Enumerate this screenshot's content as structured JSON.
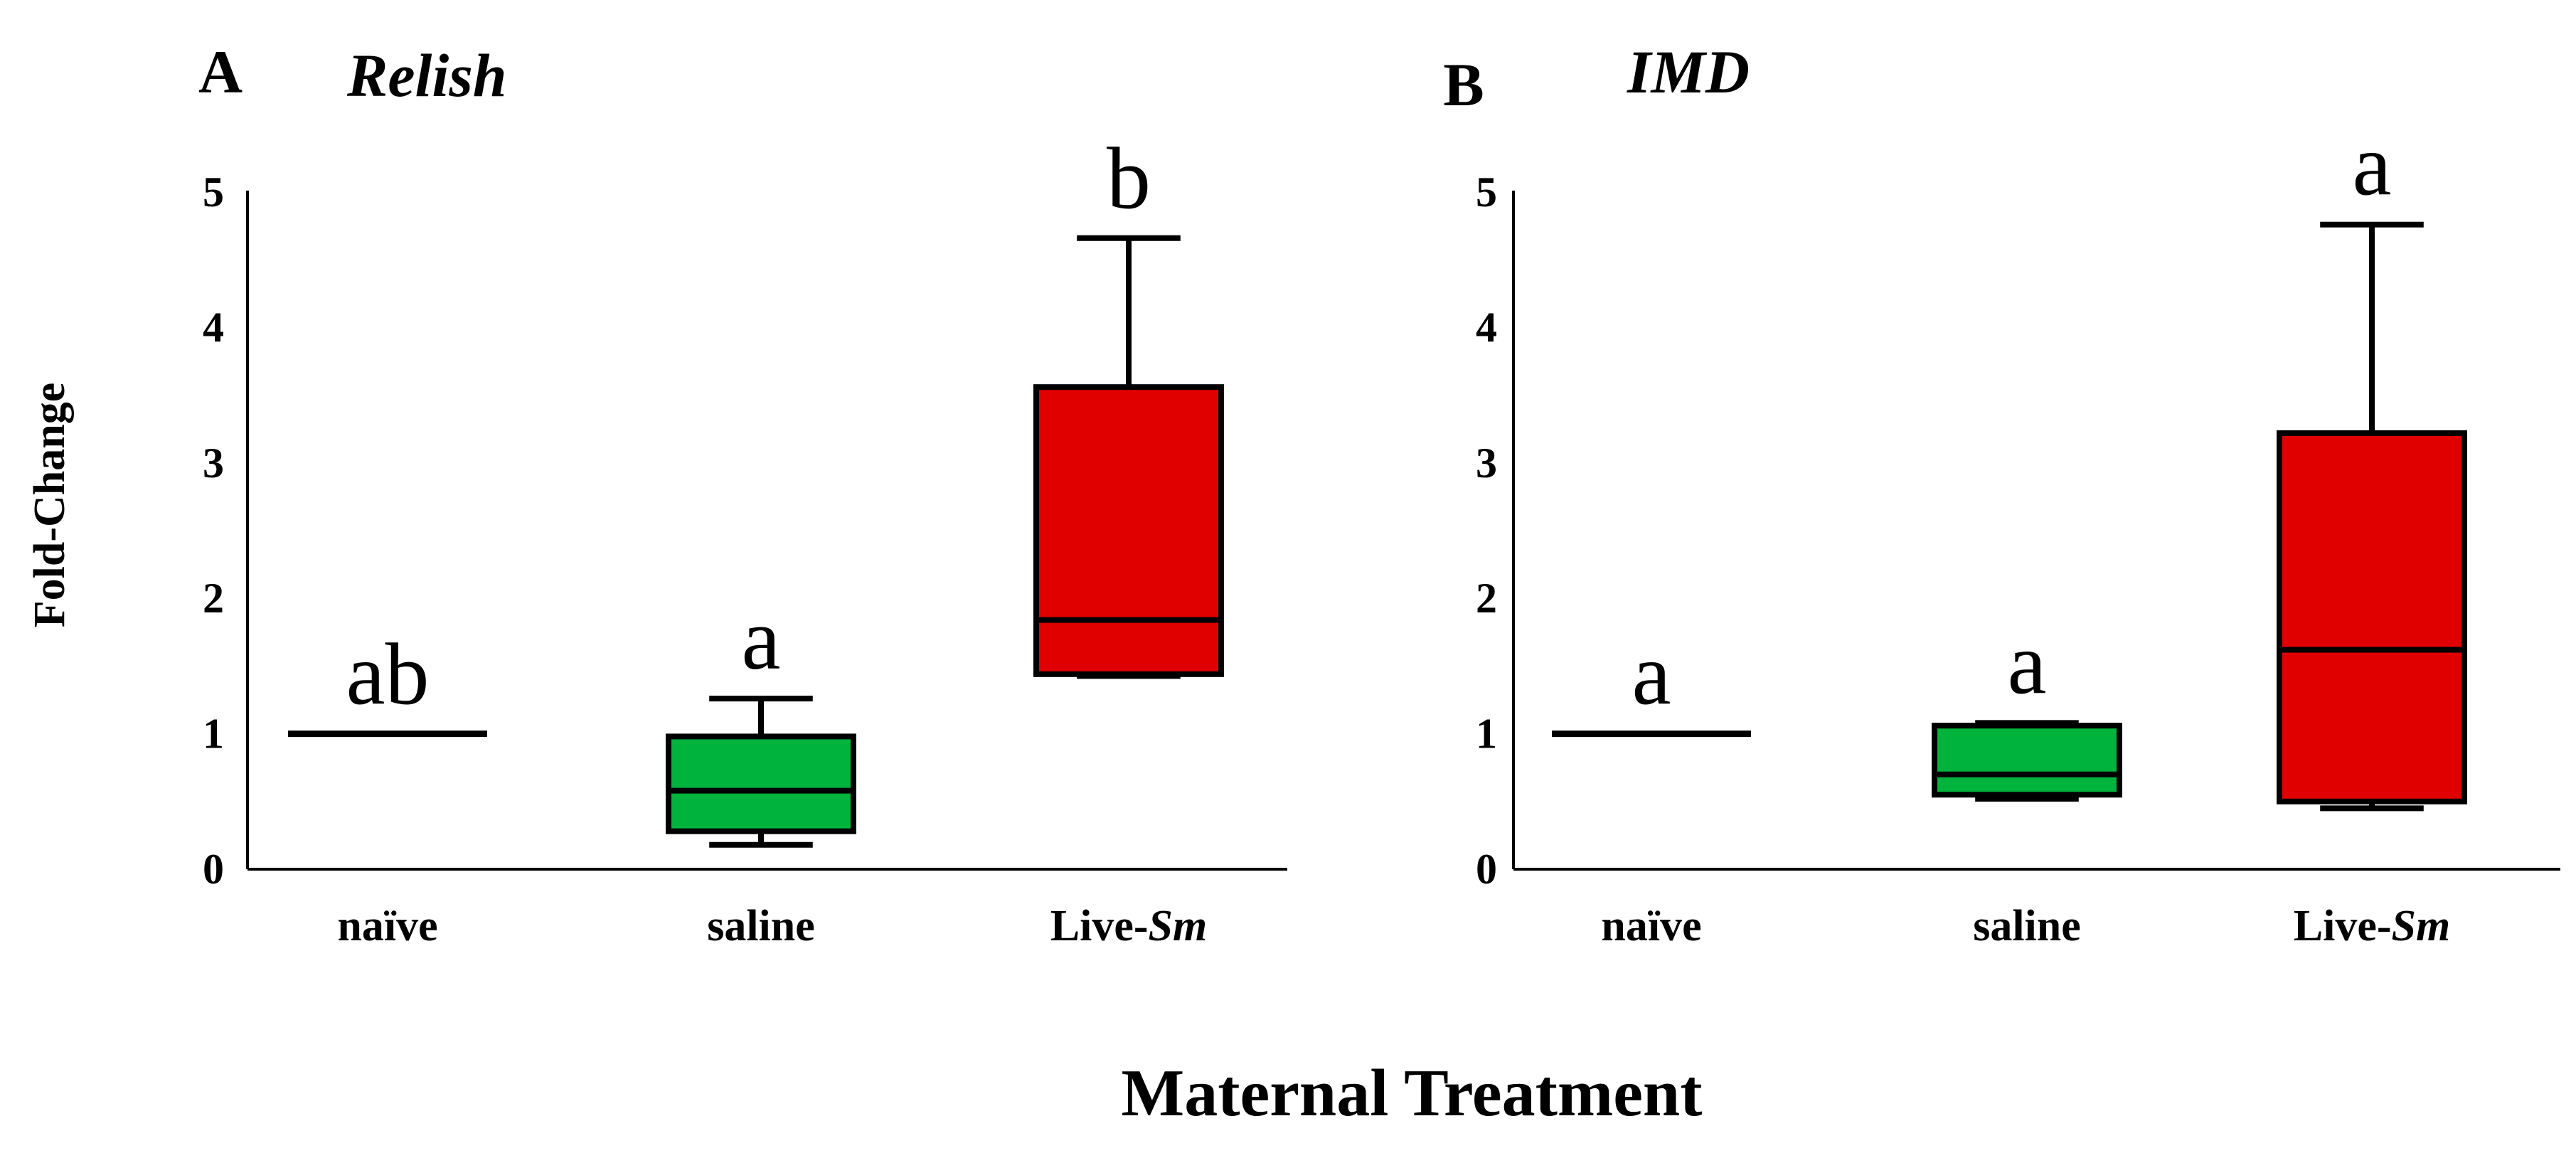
{
  "chart_data": [
    {
      "type": "box",
      "panel": "A",
      "title": "Relish",
      "ylim": [
        0,
        5
      ],
      "yticks": [
        "0",
        "1",
        "2",
        "3",
        "4",
        "5"
      ],
      "categories": [
        "naïve",
        "saline",
        "Live-Sm"
      ],
      "groups": [
        {
          "label": "naïve",
          "label_main": "naïve",
          "label_italic": "",
          "min": 1.0,
          "q1": 1.0,
          "median": 1.0,
          "q3": 1.0,
          "max": 1.0,
          "color": "#000000",
          "significance": "ab"
        },
        {
          "label": "saline",
          "label_main": "saline",
          "label_italic": "",
          "min": 0.18,
          "q1": 0.28,
          "median": 0.58,
          "q3": 0.98,
          "max": 1.26,
          "color": "#00b33c",
          "significance": "a"
        },
        {
          "label": "Live-Sm",
          "label_main": "Live-",
          "label_italic": "Sm",
          "min": 1.44,
          "q1": 1.44,
          "median": 1.84,
          "q3": 3.56,
          "max": 4.66,
          "color": "#e00000",
          "significance": "b"
        }
      ]
    },
    {
      "type": "box",
      "panel": "B",
      "title": "IMD",
      "ylim": [
        0,
        5
      ],
      "yticks": [
        "0",
        "1",
        "2",
        "3",
        "4",
        "5"
      ],
      "categories": [
        "naïve",
        "saline",
        "Live-Sm"
      ],
      "groups": [
        {
          "label": "naïve",
          "label_main": "naïve",
          "label_italic": "",
          "min": 1.0,
          "q1": 1.0,
          "median": 1.0,
          "q3": 1.0,
          "max": 1.0,
          "color": "#000000",
          "significance": "a"
        },
        {
          "label": "saline",
          "label_main": "saline",
          "label_italic": "",
          "min": 0.52,
          "q1": 0.55,
          "median": 0.7,
          "q3": 1.06,
          "max": 1.08,
          "color": "#00b33c",
          "significance": "a"
        },
        {
          "label": "Live-Sm",
          "label_main": "Live-",
          "label_italic": "Sm",
          "min": 0.45,
          "q1": 0.5,
          "median": 1.62,
          "q3": 3.22,
          "max": 4.76,
          "color": "#e00000",
          "significance": "a"
        }
      ]
    }
  ],
  "ylabel": "Fold-Change",
  "xlabel": "Maternal Treatment"
}
